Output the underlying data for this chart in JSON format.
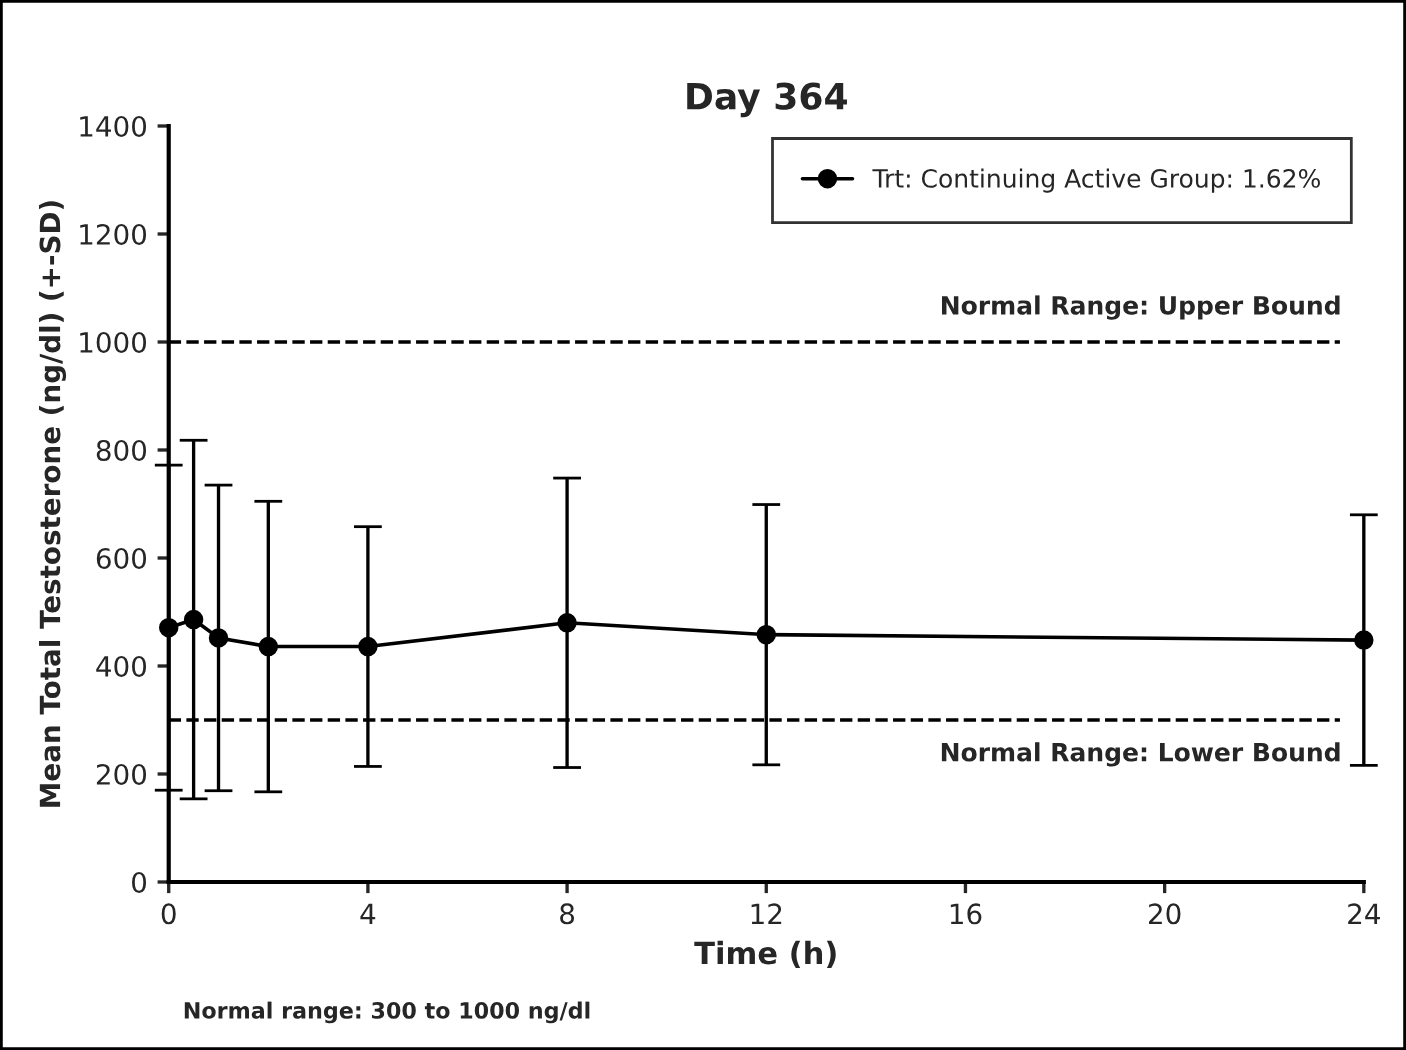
{
  "chart_data": {
    "type": "line",
    "title": "Day 364",
    "xlabel": "Time (h)",
    "ylabel": "Mean Total Testosterone (ng/dl) (+-SD)",
    "x": [
      0,
      0.5,
      1,
      2,
      4,
      8,
      12,
      24
    ],
    "series": [
      {
        "name": "Trt: Continuing Active Group: 1.62%",
        "color": "#000000",
        "values": [
          471,
          486,
          452,
          436,
          436,
          480,
          458,
          448
        ],
        "errors": [
          301,
          332,
          283,
          269,
          222,
          268,
          241,
          232
        ]
      }
    ],
    "xlim": [
      0,
      24
    ],
    "xticks": [
      0,
      4,
      8,
      12,
      16,
      20,
      24
    ],
    "ylim": [
      0,
      1400
    ],
    "yticks": [
      0,
      200,
      400,
      600,
      800,
      1000,
      1200,
      1400
    ],
    "ref_lines": [
      {
        "axis": "y",
        "value": 1000,
        "label": "Normal Range: Upper Bound",
        "color": "#000000",
        "line_style": "dashed"
      },
      {
        "axis": "y",
        "value": 300,
        "label": "Normal Range: Lower Bound",
        "color": "#000000",
        "line_style": "dashed"
      }
    ],
    "annotations": [
      "Normal range: 300 to 1000 ng/dl"
    ],
    "legend": "top right",
    "grid": false,
    "marker": "circle",
    "line_style": "solid"
  }
}
